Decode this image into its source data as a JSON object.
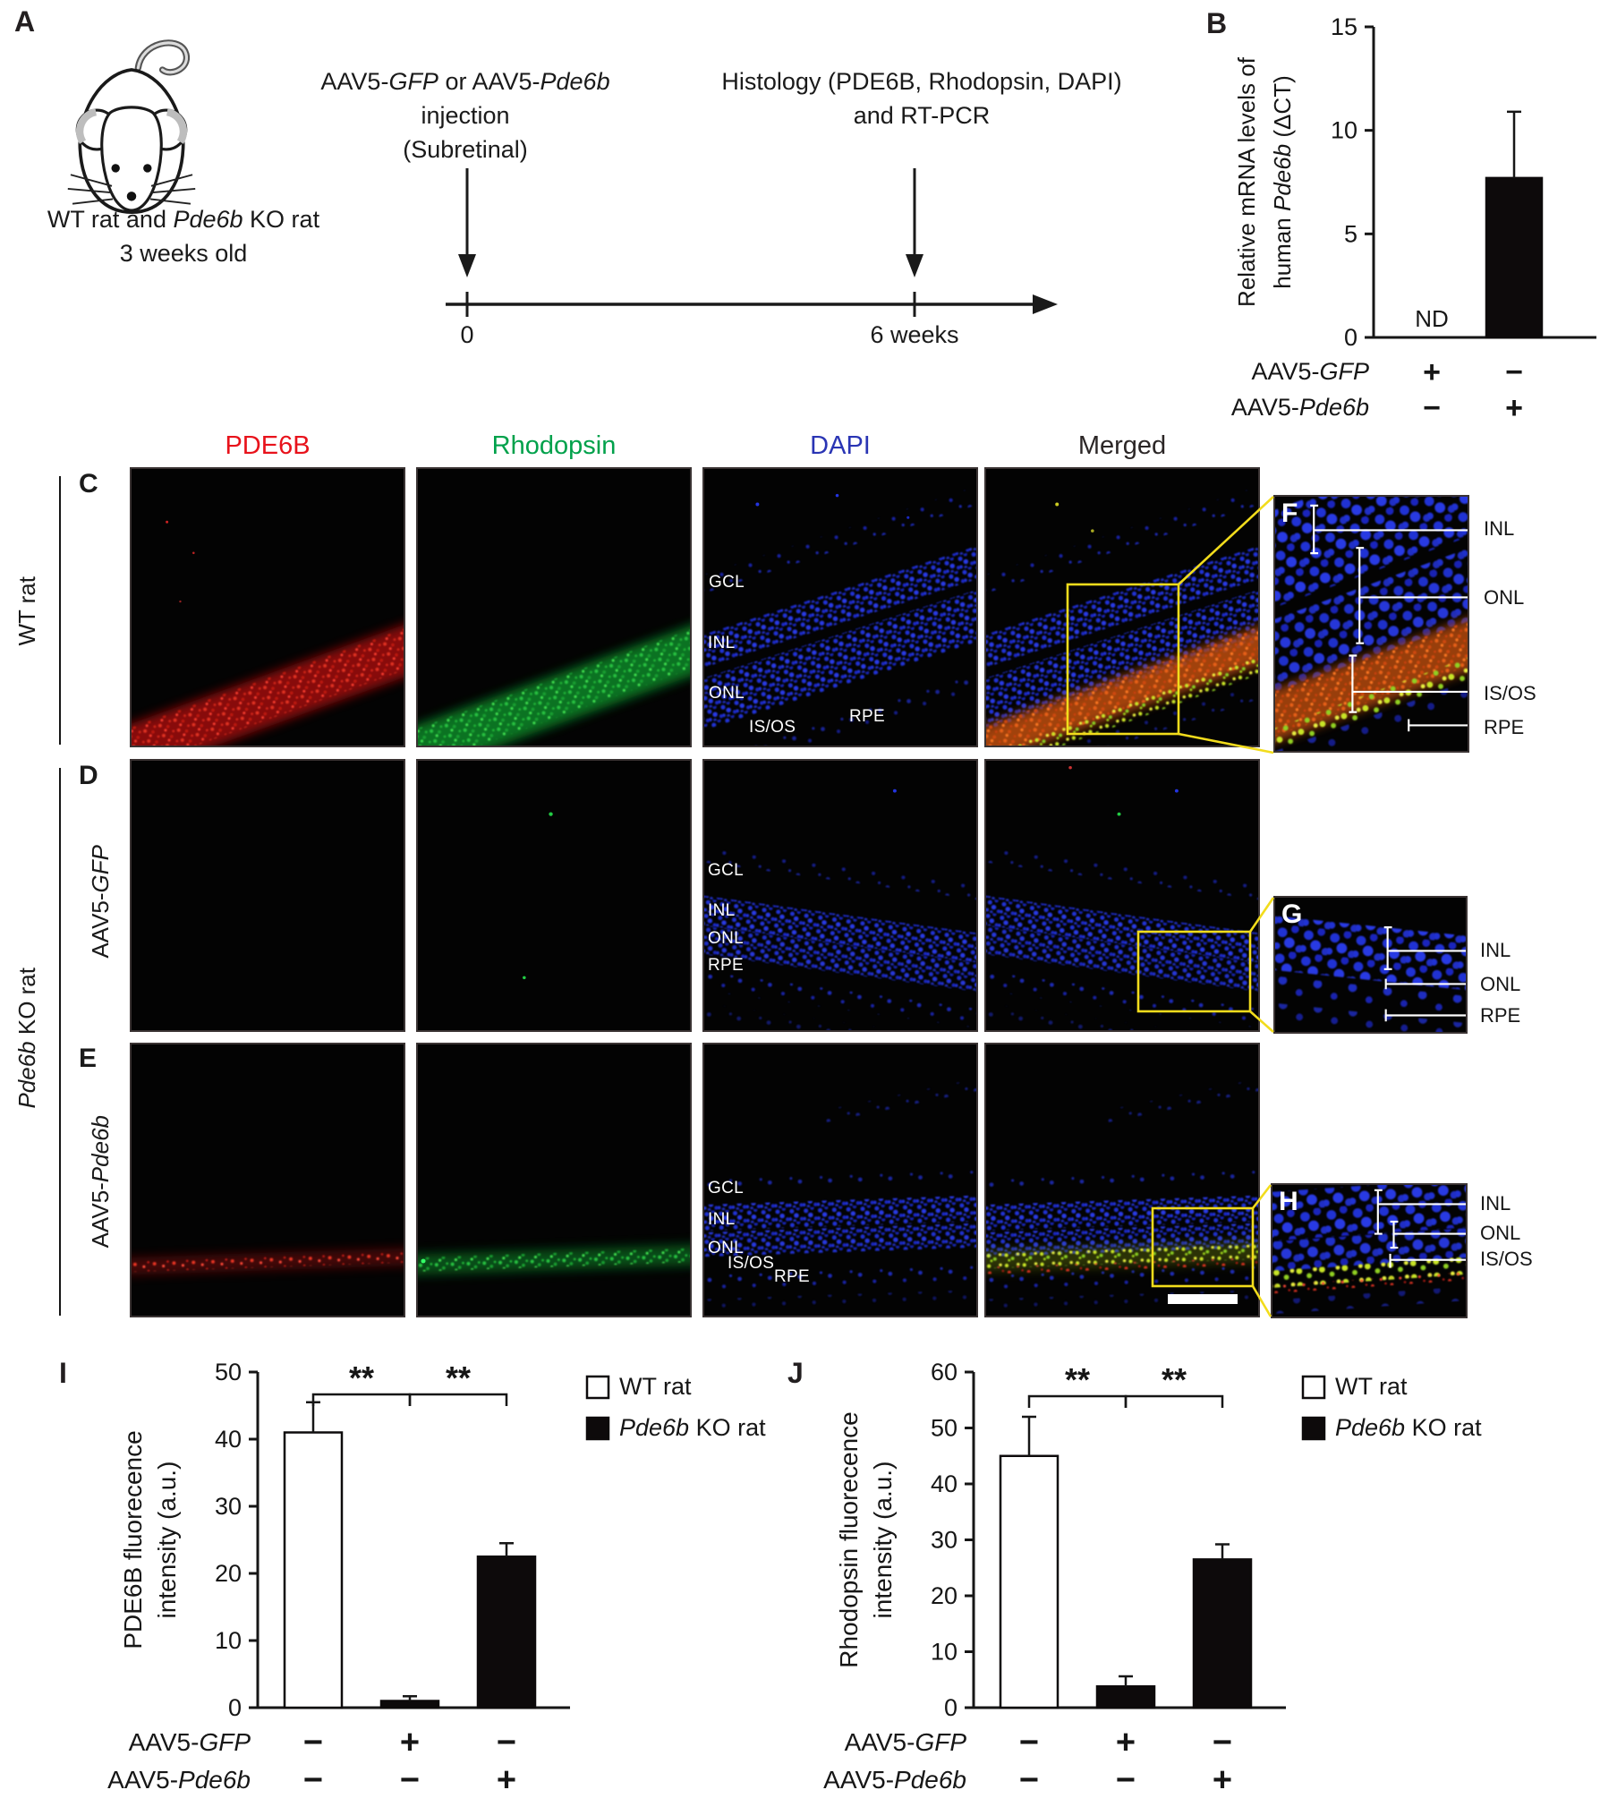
{
  "panel_a": {
    "letter": "A",
    "subject": {
      "pre": "WT rat  and ",
      "gene": "Pde6b",
      "post": " KO rat",
      "line2": "3 weeks old"
    },
    "injection": {
      "l1_pre": "AAV5-",
      "l1_g1": "GFP",
      "l1_mid": " or AAV5-",
      "l1_g2": "Pde6b",
      "l2": "injection",
      "l3": "(Subretinal)"
    },
    "histology": {
      "l1": "Histology (PDE6B, Rhodopsin, DAPI)",
      "l2": "and RT-PCR"
    },
    "timeline": {
      "start": "0",
      "end": "6 weeks"
    }
  },
  "panel_letters": {
    "b": "B",
    "i": "I",
    "j": "J"
  },
  "microscopy": {
    "headers": [
      {
        "label": "PDE6B",
        "color": "#e8121b"
      },
      {
        "label": "Rhodopsin",
        "color": "#00a14b"
      },
      {
        "label": "DAPI",
        "color": "#2a35b4"
      },
      {
        "label": "Merged",
        "color": "#2b2626"
      }
    ],
    "rows": {
      "c": {
        "letter": "C",
        "dapi_labels": {
          "gcl": "GCL",
          "inl": "INL",
          "onl": "ONL",
          "isos": "IS/OS",
          "rpe": "RPE"
        }
      },
      "d": {
        "letter": "D",
        "dapi_labels": {
          "gcl": "GCL",
          "inl": "INL",
          "onl": "ONL",
          "rpe": "RPE"
        }
      },
      "e": {
        "letter": "E",
        "dapi_labels": {
          "gcl": "GCL",
          "inl": "INL",
          "onl": "ONL",
          "isos": "IS/OS",
          "rpe": "RPE"
        }
      }
    },
    "side": {
      "wt": "WT rat",
      "ko_gene": "Pde6b",
      "ko_rest": " KO rat",
      "d_pre": "AAV5-",
      "d_gene": "GFP",
      "e_pre": "AAV5-",
      "e_gene": "Pde6b"
    },
    "insets": {
      "f": {
        "letter": "F",
        "inl": "INL",
        "onl": "ONL",
        "isos": "IS/OS",
        "rpe": "RPE"
      },
      "g": {
        "letter": "G",
        "inl": "INL",
        "onl": "ONL",
        "rpe": "RPE"
      },
      "h": {
        "letter": "H",
        "inl": "INL",
        "onl": "ONL",
        "isos": "IS/OS"
      }
    }
  },
  "chart_data": [
    {
      "id": "B",
      "type": "bar",
      "ylabel_lines": [
        [
          {
            "t": "Relative mRNA levels of"
          }
        ],
        [
          {
            "t": "human "
          },
          {
            "t": "Pde6b",
            "i": true
          },
          {
            "t": " (ΔCT)"
          }
        ]
      ],
      "ylim": [
        0,
        15
      ],
      "yticks": [
        0,
        5,
        10,
        15
      ],
      "values": [
        0,
        7.7
      ],
      "errors": [
        0,
        3.2
      ],
      "bar_fills": [
        "#ffffff",
        "#0d0a0b"
      ],
      "annotations": [
        "ND",
        ""
      ],
      "xrows": [
        {
          "label": [
            {
              "t": "AAV5-"
            },
            {
              "t": "GFP",
              "i": true
            }
          ],
          "signs": [
            "+",
            "−"
          ]
        },
        {
          "label": [
            {
              "t": "AAV5-"
            },
            {
              "t": "Pde6b",
              "i": true
            }
          ],
          "signs": [
            "−",
            "+"
          ]
        }
      ]
    },
    {
      "id": "I",
      "type": "bar",
      "ylabel_lines": [
        [
          {
            "t": "PDE6B fluorecence"
          }
        ],
        [
          {
            "t": "intensity (a.u.)"
          }
        ]
      ],
      "ylim": [
        0,
        50
      ],
      "yticks": [
        0,
        10,
        20,
        30,
        40,
        50
      ],
      "values": [
        41,
        1,
        22.5
      ],
      "errors": [
        4.5,
        0.7,
        2
      ],
      "bar_fills": [
        "#ffffff",
        "#0d0a0b",
        "#0d0a0b"
      ],
      "annotations": [
        "",
        "",
        ""
      ],
      "legend": [
        {
          "swatch": "#ffffff",
          "label": [
            {
              "t": "WT rat"
            }
          ]
        },
        {
          "swatch": "#0d0a0b",
          "label": [
            {
              "t": "Pde6b",
              "i": true
            },
            {
              "t": " KO rat"
            }
          ]
        }
      ],
      "significance": [
        {
          "a": 0,
          "b": 1,
          "t": "**"
        },
        {
          "a": 1,
          "b": 2,
          "t": "**"
        }
      ],
      "xrows": [
        {
          "label": [
            {
              "t": "AAV5-"
            },
            {
              "t": "GFP",
              "i": true
            }
          ],
          "signs": [
            "−",
            "+",
            "−"
          ]
        },
        {
          "label": [
            {
              "t": "AAV5-"
            },
            {
              "t": "Pde6b",
              "i": true
            }
          ],
          "signs": [
            "−",
            "−",
            "+"
          ]
        }
      ]
    },
    {
      "id": "J",
      "type": "bar",
      "ylabel_lines": [
        [
          {
            "t": "Rhodopsin fluorecence"
          }
        ],
        [
          {
            "t": "intensity (a.u.)"
          }
        ]
      ],
      "ylim": [
        0,
        60
      ],
      "yticks": [
        0,
        10,
        20,
        30,
        40,
        50,
        60
      ],
      "values": [
        45,
        3.8,
        26.5
      ],
      "errors": [
        7,
        1.8,
        2.7
      ],
      "bar_fills": [
        "#ffffff",
        "#0d0a0b",
        "#0d0a0b"
      ],
      "annotations": [
        "",
        "",
        ""
      ],
      "legend": [
        {
          "swatch": "#ffffff",
          "label": [
            {
              "t": "WT rat"
            }
          ]
        },
        {
          "swatch": "#0d0a0b",
          "label": [
            {
              "t": "Pde6b",
              "i": true
            },
            {
              "t": " KO rat"
            }
          ]
        }
      ],
      "significance": [
        {
          "a": 0,
          "b": 1,
          "t": "**"
        },
        {
          "a": 1,
          "b": 2,
          "t": "**"
        }
      ],
      "xrows": [
        {
          "label": [
            {
              "t": "AAV5-"
            },
            {
              "t": "GFP",
              "i": true
            }
          ],
          "signs": [
            "−",
            "+",
            "−"
          ]
        },
        {
          "label": [
            {
              "t": "AAV5-"
            },
            {
              "t": "Pde6b",
              "i": true
            }
          ],
          "signs": [
            "−",
            "−",
            "+"
          ]
        }
      ]
    }
  ]
}
